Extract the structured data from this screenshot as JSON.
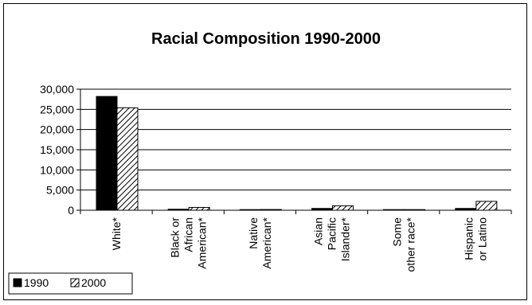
{
  "chart_data": {
    "type": "bar",
    "title": "Racial Composition 1990-2000",
    "categories": [
      [
        "White*"
      ],
      [
        "Black or",
        "African",
        "American*"
      ],
      [
        "Native",
        "American*"
      ],
      [
        "Asian",
        "Pacific",
        "Islander*"
      ],
      [
        "Some",
        "other race*"
      ],
      [
        "Hispanic",
        "or Latino"
      ]
    ],
    "series": [
      {
        "name": "1990",
        "values": [
          28200,
          250,
          120,
          450,
          30,
          450
        ],
        "fill": "#000000"
      },
      {
        "name": "2000",
        "values": [
          25400,
          700,
          180,
          1100,
          40,
          2200
        ],
        "fill": "hatch"
      }
    ],
    "ylim": [
      0,
      30000
    ],
    "yticks": [
      "0",
      "5,000",
      "10,000",
      "15,000",
      "20,000",
      "25,000",
      "30,000"
    ],
    "grid": true,
    "legend_position": "bottom-left"
  }
}
